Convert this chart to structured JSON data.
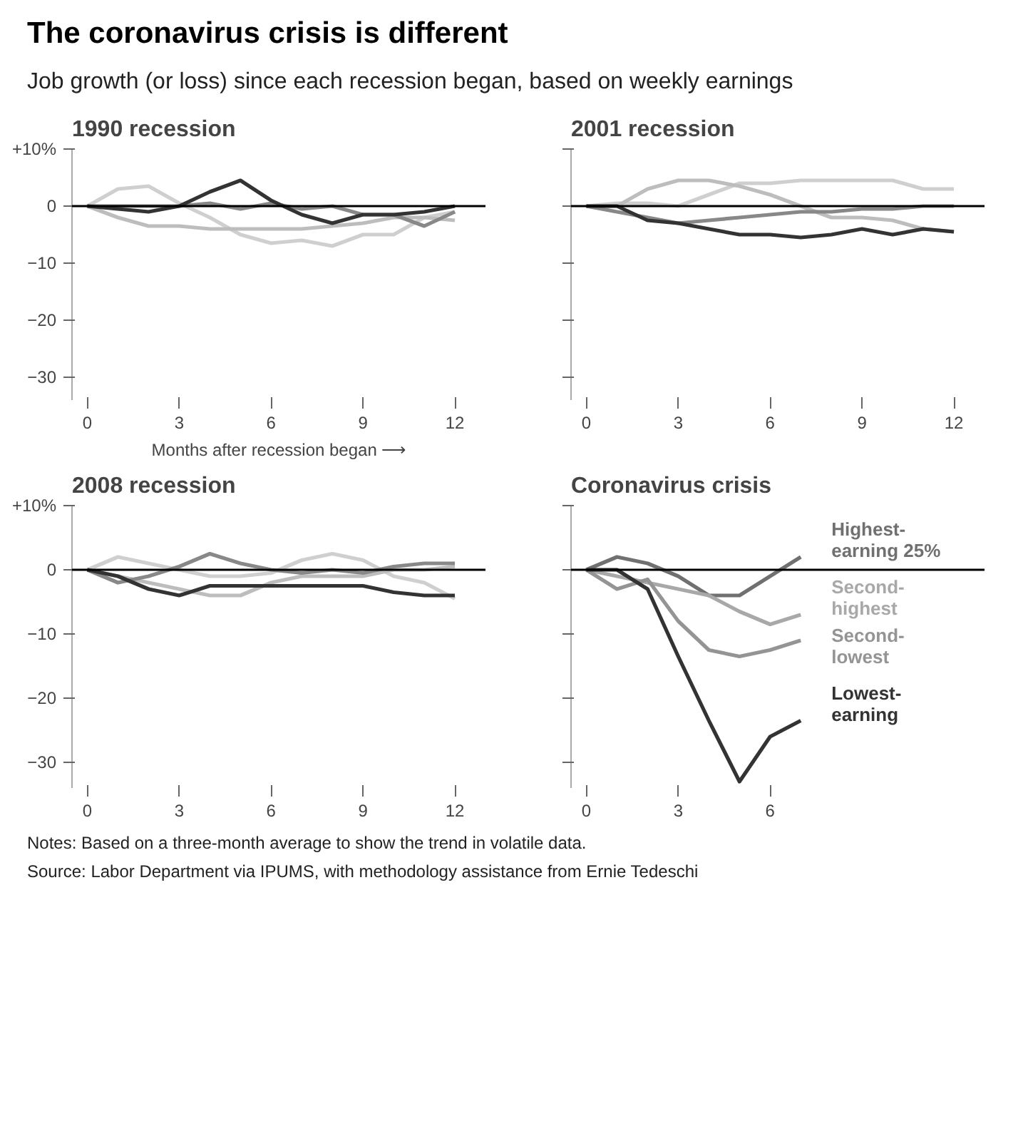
{
  "chart_data": [
    {
      "type": "other",
      "title": "The coronavirus crisis is different",
      "subtitle": "Job growth (or loss) since each recession began, based on weekly earnings"
    },
    {
      "type": "line",
      "title": "1990 recession",
      "xlabel": "Months after recession began ⟶",
      "x": [
        0,
        1,
        2,
        3,
        4,
        5,
        6,
        7,
        8,
        9,
        10,
        11,
        12
      ],
      "xlim": [
        -0.5,
        13
      ],
      "xticks": [
        0,
        3,
        6,
        9,
        12
      ],
      "ylim": [
        -34,
        10
      ],
      "yticks": [
        {
          "value": 10,
          "label": "+10%"
        },
        0,
        -10,
        -20,
        -30
      ],
      "ref_lines": [
        {
          "axis": "y",
          "value": 0,
          "color": "#000000"
        }
      ],
      "series": [
        {
          "color": "#cfcfcf",
          "values": [
            0,
            3,
            3.5,
            0.5,
            -2,
            -5,
            -6.5,
            -6,
            -7,
            -5,
            -5,
            -2,
            -1
          ]
        },
        {
          "color": "#bdbdbd",
          "values": [
            0,
            -2,
            -3.5,
            -3.5,
            -4,
            -4,
            -4,
            -4,
            -3.5,
            -3,
            -2,
            -2,
            -2.5
          ]
        },
        {
          "color": "#888888",
          "values": [
            0,
            0,
            0,
            0,
            0.5,
            -0.5,
            0.5,
            -0.5,
            0,
            -1.5,
            -1.5,
            -3.5,
            -1
          ]
        },
        {
          "color": "#333333",
          "values": [
            0,
            -0.5,
            -1,
            0,
            2.5,
            4.5,
            1,
            -1.5,
            -3,
            -1.5,
            -1.5,
            -1,
            0
          ]
        }
      ]
    },
    {
      "type": "line",
      "title": "2001 recession",
      "tick_labels": "x",
      "x": [
        0,
        1,
        2,
        3,
        4,
        5,
        6,
        7,
        8,
        9,
        10,
        11,
        12
      ],
      "xlim": [
        -0.5,
        13
      ],
      "xticks": [
        0,
        3,
        6,
        9,
        12
      ],
      "ylim": [
        -34,
        10
      ],
      "yticks": [
        10,
        0,
        -10,
        -20,
        -30
      ],
      "ref_lines": [
        {
          "axis": "y",
          "value": 0,
          "color": "#000000"
        }
      ],
      "series": [
        {
          "color": "#cfcfcf",
          "values": [
            0,
            0.5,
            0.5,
            0,
            2,
            4,
            4,
            4.5,
            4.5,
            4.5,
            4.5,
            3,
            3
          ]
        },
        {
          "color": "#bdbdbd",
          "values": [
            0,
            0,
            3,
            4.5,
            4.5,
            3.5,
            2,
            0,
            -2,
            -2,
            -2.5,
            -4,
            -4.5
          ]
        },
        {
          "color": "#888888",
          "values": [
            0,
            -1,
            -2,
            -3,
            -2.5,
            -2,
            -1.5,
            -1,
            -1,
            -0.5,
            -0.5,
            0,
            0
          ]
        },
        {
          "color": "#333333",
          "values": [
            0,
            0,
            -2.5,
            -3,
            -4,
            -5,
            -5,
            -5.5,
            -5,
            -4,
            -5,
            -4,
            -4.5
          ]
        }
      ]
    },
    {
      "type": "line",
      "title": "2008 recession",
      "x": [
        0,
        1,
        2,
        3,
        4,
        5,
        6,
        7,
        8,
        9,
        10,
        11,
        12
      ],
      "xlim": [
        -0.5,
        13
      ],
      "xticks": [
        0,
        3,
        6,
        9,
        12
      ],
      "ylim": [
        -34,
        10
      ],
      "yticks": [
        {
          "value": 10,
          "label": "+10%"
        },
        0,
        -10,
        -20,
        -30
      ],
      "ref_lines": [
        {
          "axis": "y",
          "value": 0,
          "color": "#000000"
        }
      ],
      "series": [
        {
          "color": "#cfcfcf",
          "values": [
            0,
            2,
            1,
            0,
            -1,
            -1,
            -0.5,
            1.5,
            2.5,
            1.5,
            -1,
            -2,
            -4.5
          ]
        },
        {
          "color": "#bdbdbd",
          "values": [
            0,
            -1,
            -2,
            -3,
            -4,
            -4,
            -2,
            -1,
            -1,
            -1,
            0,
            0,
            0.5
          ]
        },
        {
          "color": "#888888",
          "values": [
            0,
            -2,
            -1,
            0.5,
            2.5,
            1,
            0,
            -0.5,
            0,
            -0.5,
            0.5,
            1,
            1
          ]
        },
        {
          "color": "#333333",
          "values": [
            0,
            -1,
            -3,
            -4,
            -2.5,
            -2.5,
            -2.5,
            -2.5,
            -2.5,
            -2.5,
            -3.5,
            -4,
            -4
          ]
        }
      ]
    },
    {
      "type": "line",
      "title": "Coronavirus crisis",
      "tick_labels": "x",
      "x": [
        0,
        1,
        2,
        3,
        4,
        5,
        6,
        7
      ],
      "xlim": [
        -0.5,
        13
      ],
      "xticks": [
        0,
        3,
        6
      ],
      "ylim": [
        -34,
        10
      ],
      "yticks": [
        10,
        0,
        -10,
        -20,
        -30
      ],
      "ref_lines": [
        {
          "axis": "y",
          "value": 0,
          "color": "#000000"
        }
      ],
      "series": [
        {
          "name": "Highest-earning 25%",
          "color": "#707070",
          "values": [
            0,
            2,
            1,
            -1,
            -4,
            -4,
            -1,
            2
          ]
        },
        {
          "name": "Second-highest",
          "color": "#a8a8a8",
          "values": [
            0,
            -1,
            -2,
            -3,
            -4,
            -6.5,
            -8.5,
            -7
          ]
        },
        {
          "name": "Second-lowest",
          "color": "#949494",
          "values": [
            0,
            -3,
            -1.5,
            -8,
            -12.5,
            -13.5,
            -12.5,
            -11
          ]
        },
        {
          "name": "Lowest-earning",
          "color": "#333333",
          "values": [
            0,
            0,
            -3,
            -13.5,
            -23.5,
            -33,
            -26,
            -23.5
          ]
        }
      ]
    },
    {
      "type": "other",
      "annotations": [
        "Notes: Based on a three-month average to show the trend in volatile data.",
        "Source: Labor Department via IPUMS, with methodology assistance from Ernie Tedeschi"
      ]
    }
  ]
}
